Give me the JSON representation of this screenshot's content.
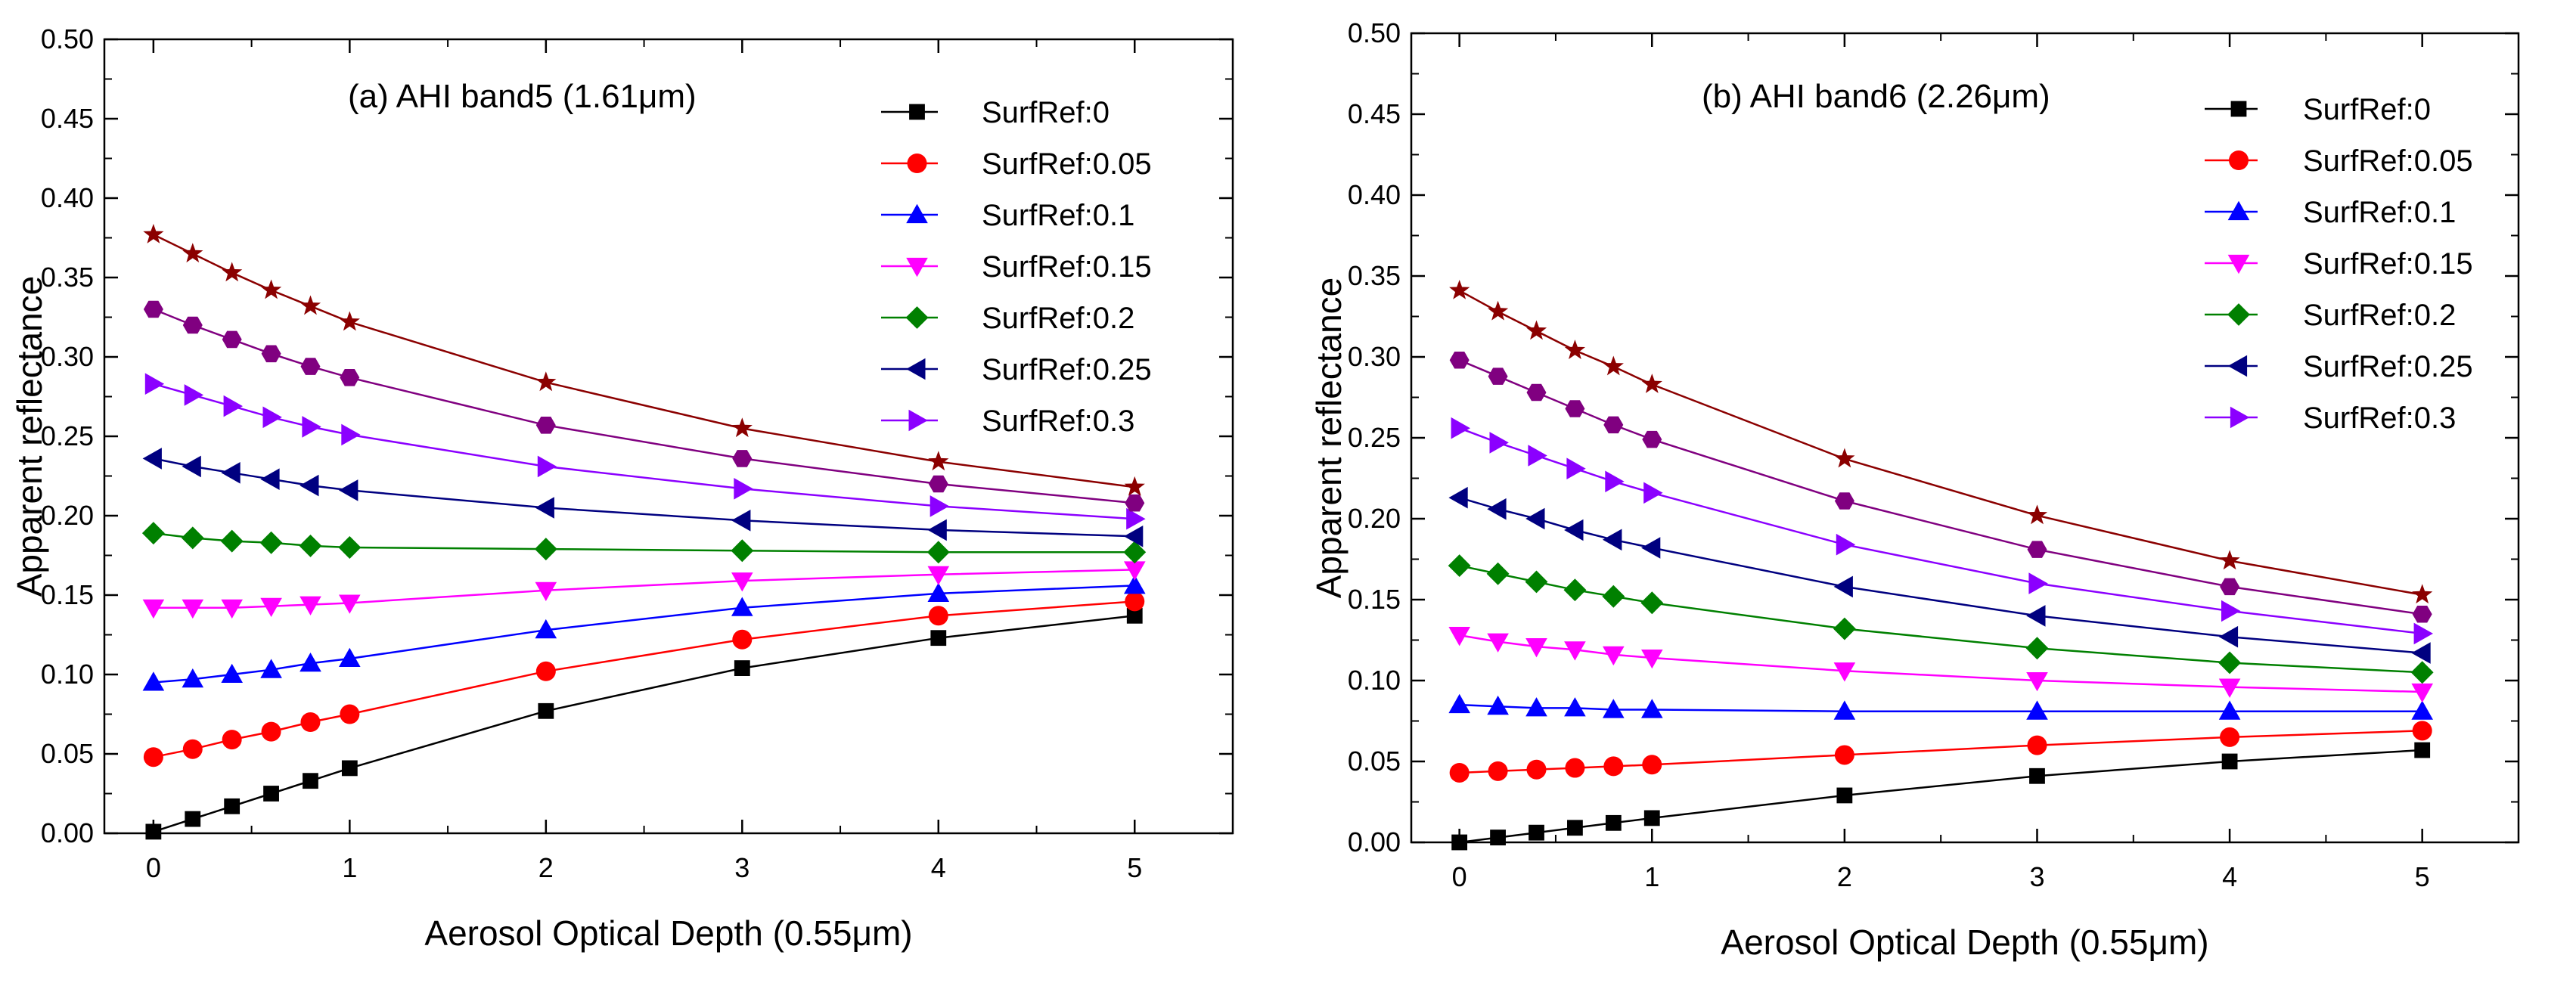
{
  "chart_data": [
    {
      "type": "line",
      "title": "(a) AHI band5 (1.61μm)",
      "xlabel": "Aerosol Optical Depth (0.55μm)",
      "ylabel": "Apparent reflectance",
      "xlim": [
        -0.25,
        5.5
      ],
      "ylim": [
        0,
        0.5
      ],
      "xticks": [
        "0",
        "1",
        "2",
        "3",
        "4",
        "5"
      ],
      "yticks": [
        "0.00",
        "0.05",
        "0.10",
        "0.15",
        "0.20",
        "0.25",
        "0.30",
        "0.35",
        "0.40",
        "0.45",
        "0.50"
      ],
      "x": [
        0,
        0.2,
        0.4,
        0.6,
        0.8,
        1,
        2,
        3,
        4,
        5
      ],
      "legend_position": "top-right",
      "series": [
        {
          "name": "SurfRef:0",
          "color": "#000000",
          "marker": "square",
          "values": [
            0.001,
            0.009,
            0.017,
            0.025,
            0.033,
            0.041,
            0.077,
            0.104,
            0.123,
            0.137
          ]
        },
        {
          "name": "SurfRef:0.05",
          "color": "#ff0000",
          "marker": "circle",
          "values": [
            0.048,
            0.053,
            0.059,
            0.064,
            0.07,
            0.075,
            0.102,
            0.122,
            0.137,
            0.146
          ]
        },
        {
          "name": "SurfRef:0.1",
          "color": "#0000ff",
          "marker": "triangle-up",
          "values": [
            0.095,
            0.097,
            0.1,
            0.103,
            0.107,
            0.11,
            0.128,
            0.142,
            0.151,
            0.156
          ]
        },
        {
          "name": "SurfRef:0.15",
          "color": "#ff00ff",
          "marker": "triangle-down",
          "values": [
            0.142,
            0.142,
            0.142,
            0.143,
            0.144,
            0.145,
            0.153,
            0.159,
            0.163,
            0.166
          ]
        },
        {
          "name": "SurfRef:0.2",
          "color": "#008000",
          "marker": "diamond",
          "values": [
            0.189,
            0.186,
            0.184,
            0.183,
            0.181,
            0.18,
            0.179,
            0.178,
            0.177,
            0.177
          ]
        },
        {
          "name": "SurfRef:0.25",
          "color": "#000080",
          "marker": "triangle-left",
          "values": [
            0.236,
            0.231,
            0.227,
            0.223,
            0.219,
            0.216,
            0.205,
            0.197,
            0.191,
            0.187
          ]
        },
        {
          "name": "SurfRef:0.3",
          "color": "#8b00ff",
          "marker": "triangle-right",
          "values": [
            0.283,
            0.276,
            0.269,
            0.262,
            0.256,
            0.251,
            0.231,
            0.217,
            0.206,
            0.198
          ]
        },
        {
          "name": "",
          "color": "#800080",
          "marker": "hexagon",
          "values": [
            0.33,
            0.32,
            0.311,
            0.302,
            0.294,
            0.287,
            0.257,
            0.236,
            0.22,
            0.208
          ]
        },
        {
          "name": "",
          "color": "#8b0000",
          "marker": "star",
          "values": [
            0.377,
            0.365,
            0.353,
            0.342,
            0.332,
            0.322,
            0.284,
            0.255,
            0.234,
            0.218
          ]
        }
      ]
    },
    {
      "type": "line",
      "title": "(b) AHI band6 (2.26μm)",
      "xlabel": "Aerosol Optical Depth (0.55μm)",
      "ylabel": "Apparent reflectance",
      "xlim": [
        -0.25,
        5.5
      ],
      "ylim": [
        0,
        0.5
      ],
      "xticks": [
        "0",
        "1",
        "2",
        "3",
        "4",
        "5"
      ],
      "yticks": [
        "0.00",
        "0.05",
        "0.10",
        "0.15",
        "0.20",
        "0.25",
        "0.30",
        "0.35",
        "0.40",
        "0.45",
        "0.50"
      ],
      "x": [
        0,
        0.2,
        0.4,
        0.6,
        0.8,
        1,
        2,
        3,
        4,
        5
      ],
      "legend_position": "top-right",
      "series": [
        {
          "name": "SurfRef:0",
          "color": "#000000",
          "marker": "square",
          "values": [
            0.0,
            0.003,
            0.006,
            0.009,
            0.012,
            0.015,
            0.029,
            0.041,
            0.05,
            0.057
          ]
        },
        {
          "name": "SurfRef:0.05",
          "color": "#ff0000",
          "marker": "circle",
          "values": [
            0.043,
            0.044,
            0.045,
            0.046,
            0.047,
            0.048,
            0.054,
            0.06,
            0.065,
            0.069
          ]
        },
        {
          "name": "SurfRef:0.1",
          "color": "#0000ff",
          "marker": "triangle-up",
          "values": [
            0.085,
            0.084,
            0.083,
            0.083,
            0.082,
            0.082,
            0.081,
            0.081,
            0.081,
            0.081
          ]
        },
        {
          "name": "SurfRef:0.15",
          "color": "#ff00ff",
          "marker": "triangle-down",
          "values": [
            0.128,
            0.124,
            0.121,
            0.119,
            0.116,
            0.114,
            0.106,
            0.1,
            0.096,
            0.093
          ]
        },
        {
          "name": "SurfRef:0.2",
          "color": "#008000",
          "marker": "diamond",
          "values": [
            0.171,
            0.166,
            0.161,
            0.156,
            0.152,
            0.148,
            0.132,
            0.12,
            0.111,
            0.105
          ]
        },
        {
          "name": "SurfRef:0.25",
          "color": "#000080",
          "marker": "triangle-left",
          "values": [
            0.213,
            0.206,
            0.2,
            0.193,
            0.187,
            0.182,
            0.158,
            0.14,
            0.127,
            0.117
          ]
        },
        {
          "name": "SurfRef:0.3",
          "color": "#8b00ff",
          "marker": "triangle-right",
          "values": [
            0.256,
            0.247,
            0.239,
            0.231,
            0.223,
            0.216,
            0.184,
            0.16,
            0.143,
            0.129
          ]
        },
        {
          "name": "",
          "color": "#800080",
          "marker": "hexagon",
          "values": [
            0.298,
            0.288,
            0.278,
            0.268,
            0.258,
            0.249,
            0.211,
            0.181,
            0.158,
            0.141
          ]
        },
        {
          "name": "",
          "color": "#8b0000",
          "marker": "star",
          "values": [
            0.341,
            0.328,
            0.316,
            0.304,
            0.294,
            0.283,
            0.237,
            0.202,
            0.174,
            0.153
          ]
        }
      ]
    }
  ]
}
